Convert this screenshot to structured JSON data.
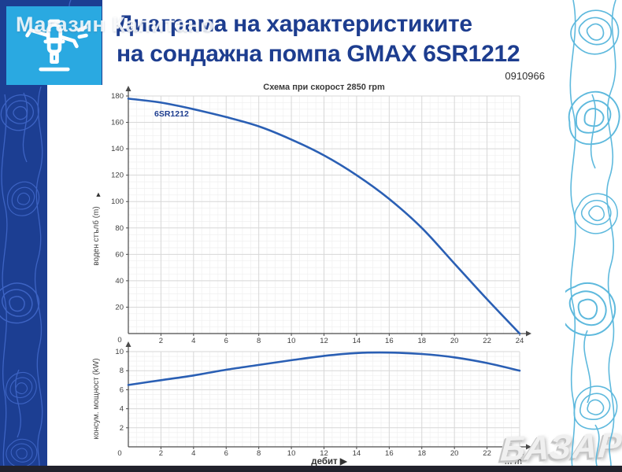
{
  "watermarks": {
    "store": "Магазин Капитано",
    "marketplace": "БАЗАР"
  },
  "header": {
    "title_line1": "Диаграма на характеристиките",
    "title_line2": "на сондажна помпа GMAX 6SR1212",
    "product_code": "0910966"
  },
  "icons": {
    "brand": "sprinkler-icon",
    "y_axis_marker": "▲",
    "x_axis_marker": "▶"
  },
  "colors": {
    "title_blue": "#1d3d8f",
    "curve_blue": "#2a5fb4",
    "icon_bg": "#2aa9e1",
    "left_bar": "#1c3e92",
    "left_contour": "#4168c9",
    "right_contour": "#56b6dc",
    "grid_major": "#d7d7d7",
    "grid_minor": "#eeeeee",
    "axis": "#4a4a4a",
    "tick_text": "#3f3f3f",
    "bottom_bar": "#22222c"
  },
  "chart_data": [
    {
      "type": "line",
      "title": "Схема при скорост 2850 rpm",
      "ylabel": "воден стълб (m)",
      "ylabel_marker": "▲",
      "xlabel": "",
      "xlim": [
        0,
        24
      ],
      "ylim": [
        0,
        180
      ],
      "x_major": 2,
      "x_minor": 0.5,
      "y_major": 20,
      "y_minor": 5,
      "grid": true,
      "legend_position": "inside-top-left",
      "series": [
        {
          "name": "6SR1212",
          "x": [
            0,
            2,
            4,
            6,
            8,
            10,
            12,
            14,
            16,
            18,
            20,
            22,
            24
          ],
          "y": [
            178,
            175,
            170,
            164,
            157,
            147,
            135,
            120,
            102,
            80,
            53,
            26,
            0
          ]
        }
      ]
    },
    {
      "type": "line",
      "title": "",
      "ylabel": "консум. мощност (kW)",
      "xlabel": "дебит ▶",
      "x_unit": "m³/h",
      "xlim": [
        0,
        24
      ],
      "ylim": [
        0,
        10
      ],
      "x_major": 2,
      "x_minor": 0.5,
      "y_major": 2,
      "y_minor": 0.5,
      "grid": true,
      "series": [
        {
          "name": "консум. мощност",
          "x": [
            0,
            2,
            4,
            6,
            8,
            10,
            12,
            14,
            16,
            18,
            20,
            22,
            24
          ],
          "y": [
            6.5,
            7.0,
            7.5,
            8.1,
            8.6,
            9.1,
            9.55,
            9.85,
            9.9,
            9.75,
            9.4,
            8.8,
            8.0
          ]
        }
      ]
    }
  ]
}
